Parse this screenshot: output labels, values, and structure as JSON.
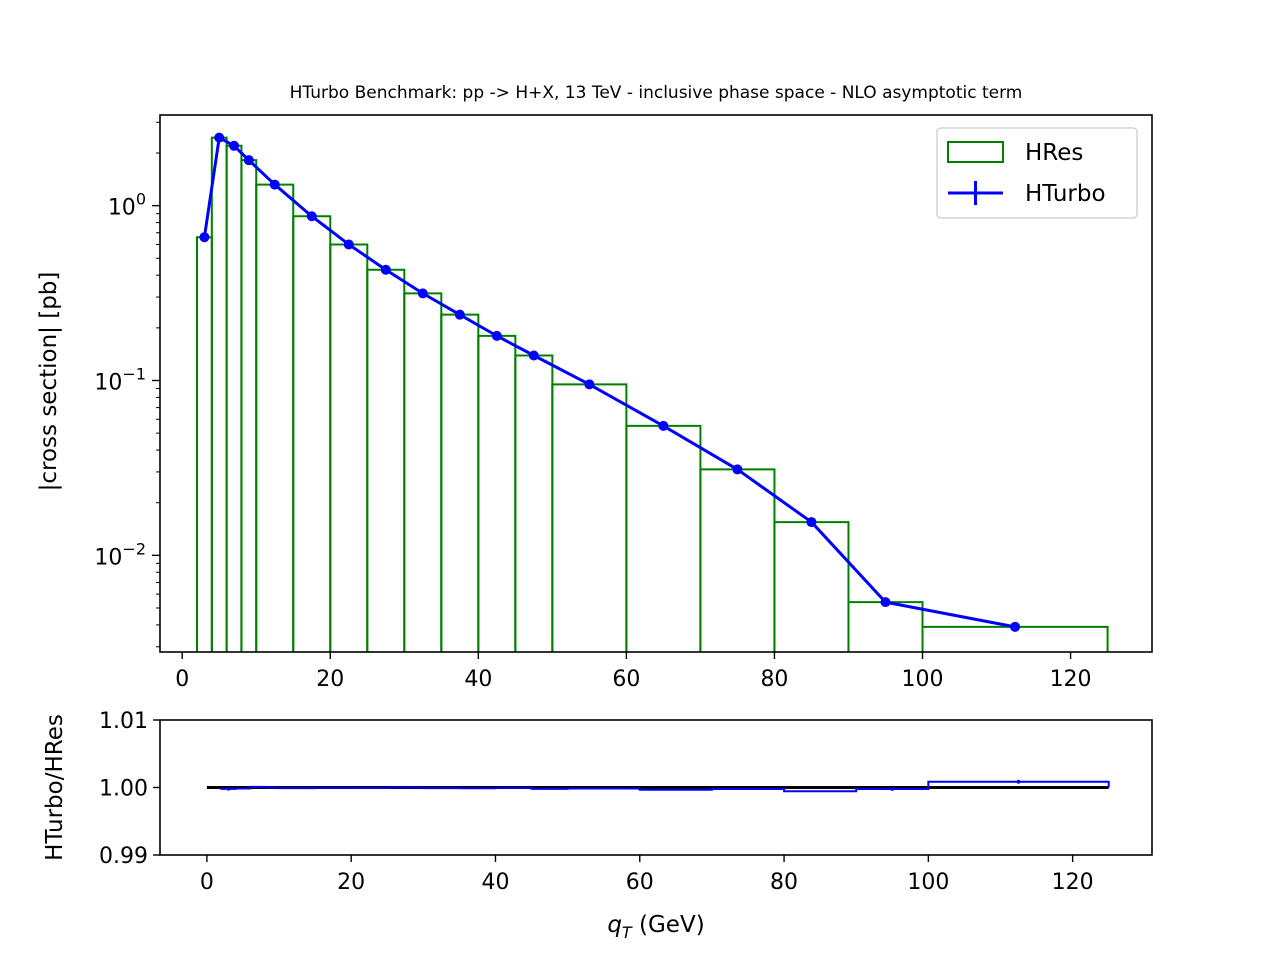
{
  "chart_data": [
    {
      "type": "bar",
      "panel": "main",
      "title": "HTurbo Benchmark: pp -> H+X, 13 TeV - inclusive phase space - NLO asymptotic term",
      "xlabel": "",
      "ylabel": "|cross section| [pb]",
      "yscale": "log",
      "xlim": [
        -3,
        131
      ],
      "ylim": [
        0.0028,
        3.3
      ],
      "xticks": [
        0,
        20,
        40,
        60,
        80,
        100,
        120
      ],
      "xtick_labels": [
        "0",
        "20",
        "40",
        "60",
        "80",
        "100",
        "120"
      ],
      "yticks": [
        0.01,
        0.1,
        1
      ],
      "ytick_labels": [
        {
          "base": "10",
          "exp": "−2"
        },
        {
          "base": "10",
          "exp": "−1"
        },
        {
          "base": "10",
          "exp": "0"
        }
      ],
      "legend_position": "upper right",
      "legend": [
        "HRes",
        "HTurbo"
      ],
      "series": [
        {
          "name": "HRes",
          "kind": "step-histogram",
          "color": "#008000",
          "bin_edges": [
            2,
            4,
            6,
            8,
            10,
            15,
            20,
            25,
            30,
            35,
            40,
            45,
            50,
            60,
            70,
            80,
            90,
            100,
            125
          ],
          "values": [
            0.66,
            2.45,
            2.2,
            1.82,
            1.32,
            0.87,
            0.6,
            0.43,
            0.315,
            0.238,
            0.18,
            0.139,
            0.095,
            0.055,
            0.031,
            0.0155,
            0.0054,
            0.0039
          ]
        },
        {
          "name": "HTurbo",
          "kind": "line-with-errorbars",
          "color": "#0000ff",
          "x": [
            3,
            5,
            7,
            9,
            12.5,
            17.5,
            22.5,
            27.5,
            32.5,
            37.5,
            42.5,
            47.5,
            55,
            65,
            75,
            85,
            95,
            112.5
          ],
          "values": [
            0.66,
            2.45,
            2.2,
            1.82,
            1.32,
            0.87,
            0.6,
            0.43,
            0.315,
            0.238,
            0.18,
            0.139,
            0.095,
            0.055,
            0.031,
            0.0155,
            0.0054,
            0.0039
          ]
        }
      ]
    },
    {
      "type": "line",
      "panel": "ratio",
      "xlabel": "q_T (GeV)",
      "xlabel_main": "q",
      "xlabel_sub": "T",
      "xlabel_rest": " (GeV)",
      "ylabel": "HTurbo/HRes",
      "xlim": [
        -6.5,
        131
      ],
      "ylim": [
        0.99,
        1.01
      ],
      "xticks": [
        0,
        20,
        40,
        60,
        80,
        100,
        120
      ],
      "xtick_labels": [
        "0",
        "20",
        "40",
        "60",
        "80",
        "100",
        "120"
      ],
      "yticks": [
        0.99,
        1.0,
        1.01
      ],
      "ytick_labels": [
        "0.99",
        "1.00",
        "1.01"
      ],
      "series": [
        {
          "name": "",
          "kind": "reference-line",
          "color": "#000000",
          "x": [
            0,
            125
          ],
          "values": [
            1.0,
            1.0
          ]
        },
        {
          "name": "",
          "kind": "step-with-errorbars",
          "color": "#0000ff",
          "bin_edges": [
            2,
            4,
            6,
            8,
            10,
            15,
            20,
            25,
            30,
            35,
            40,
            45,
            50,
            60,
            70,
            80,
            90,
            100,
            125
          ],
          "x": [
            3,
            5,
            7,
            9,
            12.5,
            17.5,
            22.5,
            27.5,
            32.5,
            37.5,
            42.5,
            47.5,
            55,
            65,
            75,
            85,
            95,
            112.5
          ],
          "values": [
            0.9998,
            0.99985,
            1.0001,
            1.0,
            0.9999,
            0.99995,
            0.99993,
            1.0,
            0.9999,
            0.99988,
            0.99995,
            0.9998,
            0.99985,
            0.99967,
            0.99977,
            0.99945,
            0.99977,
            1.00085
          ],
          "errors": [
            0.00025,
            5e-05,
            5e-05,
            3e-05,
            3e-05,
            3e-05,
            3e-05,
            3e-05,
            5e-05,
            5e-05,
            6e-05,
            7e-05,
            7e-05,
            8e-05,
            6e-05,
            0.00011,
            0.00025,
            0.00028
          ]
        }
      ]
    }
  ]
}
